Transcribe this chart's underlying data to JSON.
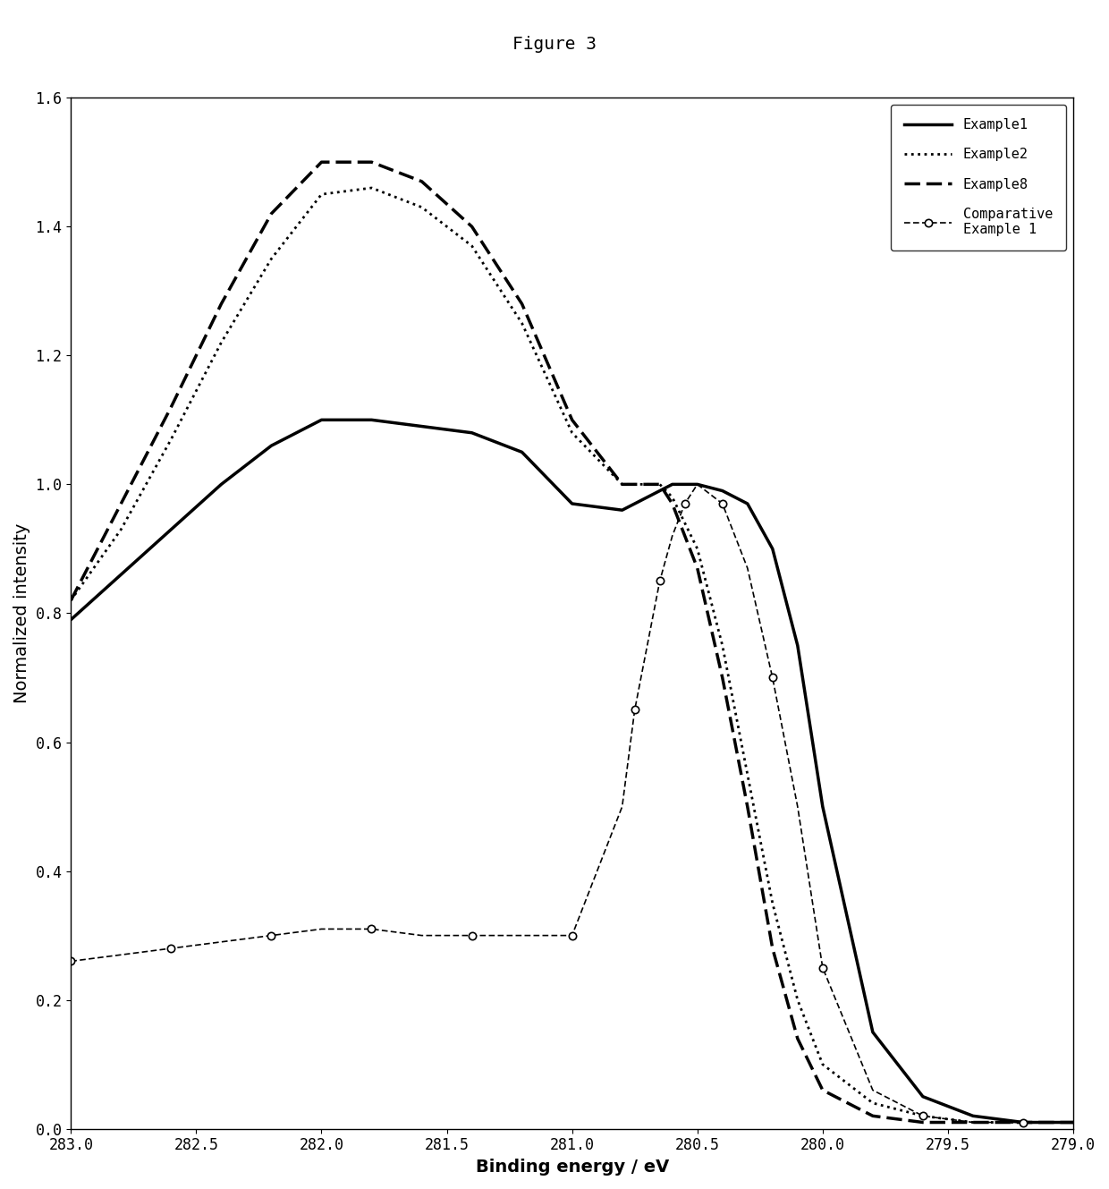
{
  "title": "Figure 3",
  "xlabel": "Binding energy / eV",
  "ylabel": "Normalized intensity",
  "xlim": [
    283.0,
    279.0
  ],
  "ylim": [
    0.0,
    1.6
  ],
  "yticks": [
    0.0,
    0.2,
    0.4,
    0.6,
    0.8,
    1.0,
    1.2,
    1.4,
    1.6
  ],
  "xticks": [
    283.0,
    282.5,
    282.0,
    281.5,
    281.0,
    280.5,
    280.0,
    279.5,
    279.0
  ],
  "background_color": "#ffffff",
  "title_fontsize": 14,
  "label_fontsize": 14,
  "tick_fontsize": 12,
  "legend_fontsize": 11,
  "example1_x": [
    283.0,
    282.8,
    282.6,
    282.4,
    282.2,
    282.0,
    281.8,
    281.6,
    281.4,
    281.2,
    281.0,
    280.8,
    280.7,
    280.6,
    280.5,
    280.4,
    280.3,
    280.2,
    280.1,
    280.0,
    279.8,
    279.6,
    279.4,
    279.2,
    279.0
  ],
  "example1_y": [
    0.79,
    0.86,
    0.93,
    1.0,
    1.06,
    1.1,
    1.1,
    1.09,
    1.08,
    1.05,
    0.97,
    0.96,
    0.98,
    1.0,
    1.0,
    0.99,
    0.97,
    0.9,
    0.75,
    0.5,
    0.15,
    0.05,
    0.02,
    0.01,
    0.01
  ],
  "example2_x": [
    283.0,
    282.8,
    282.6,
    282.4,
    282.2,
    282.0,
    281.8,
    281.6,
    281.4,
    281.2,
    281.0,
    280.8,
    280.7,
    280.65,
    280.6,
    280.5,
    280.4,
    280.3,
    280.2,
    280.1,
    280.0,
    279.8,
    279.6,
    279.4,
    279.2,
    279.0
  ],
  "example2_y": [
    0.82,
    0.93,
    1.07,
    1.22,
    1.35,
    1.45,
    1.46,
    1.43,
    1.37,
    1.25,
    1.08,
    1.0,
    1.0,
    1.0,
    0.98,
    0.9,
    0.75,
    0.55,
    0.35,
    0.2,
    0.1,
    0.04,
    0.02,
    0.01,
    0.01,
    0.01
  ],
  "example8_x": [
    283.0,
    282.8,
    282.6,
    282.4,
    282.2,
    282.0,
    281.8,
    281.6,
    281.4,
    281.2,
    281.0,
    280.8,
    280.7,
    280.65,
    280.6,
    280.5,
    280.4,
    280.3,
    280.2,
    280.1,
    280.0,
    279.8,
    279.6,
    279.4,
    279.2,
    279.0
  ],
  "example8_y": [
    0.82,
    0.97,
    1.12,
    1.28,
    1.42,
    1.5,
    1.5,
    1.47,
    1.4,
    1.28,
    1.1,
    1.0,
    1.0,
    1.0,
    0.97,
    0.87,
    0.7,
    0.5,
    0.28,
    0.14,
    0.06,
    0.02,
    0.01,
    0.01,
    0.01,
    0.01
  ],
  "comp1_x": [
    283.0,
    282.8,
    282.6,
    282.4,
    282.2,
    282.0,
    281.8,
    281.6,
    281.4,
    281.2,
    281.0,
    280.8,
    280.75,
    280.7,
    280.65,
    280.6,
    280.55,
    280.5,
    280.4,
    280.3,
    280.2,
    280.1,
    280.0,
    279.8,
    279.6,
    279.4,
    279.2,
    279.0
  ],
  "comp1_y": [
    0.26,
    0.27,
    0.28,
    0.29,
    0.3,
    0.31,
    0.31,
    0.3,
    0.3,
    0.3,
    0.3,
    0.5,
    0.65,
    0.75,
    0.85,
    0.92,
    0.97,
    1.0,
    0.97,
    0.87,
    0.7,
    0.5,
    0.25,
    0.06,
    0.02,
    0.01,
    0.01,
    0.01
  ]
}
